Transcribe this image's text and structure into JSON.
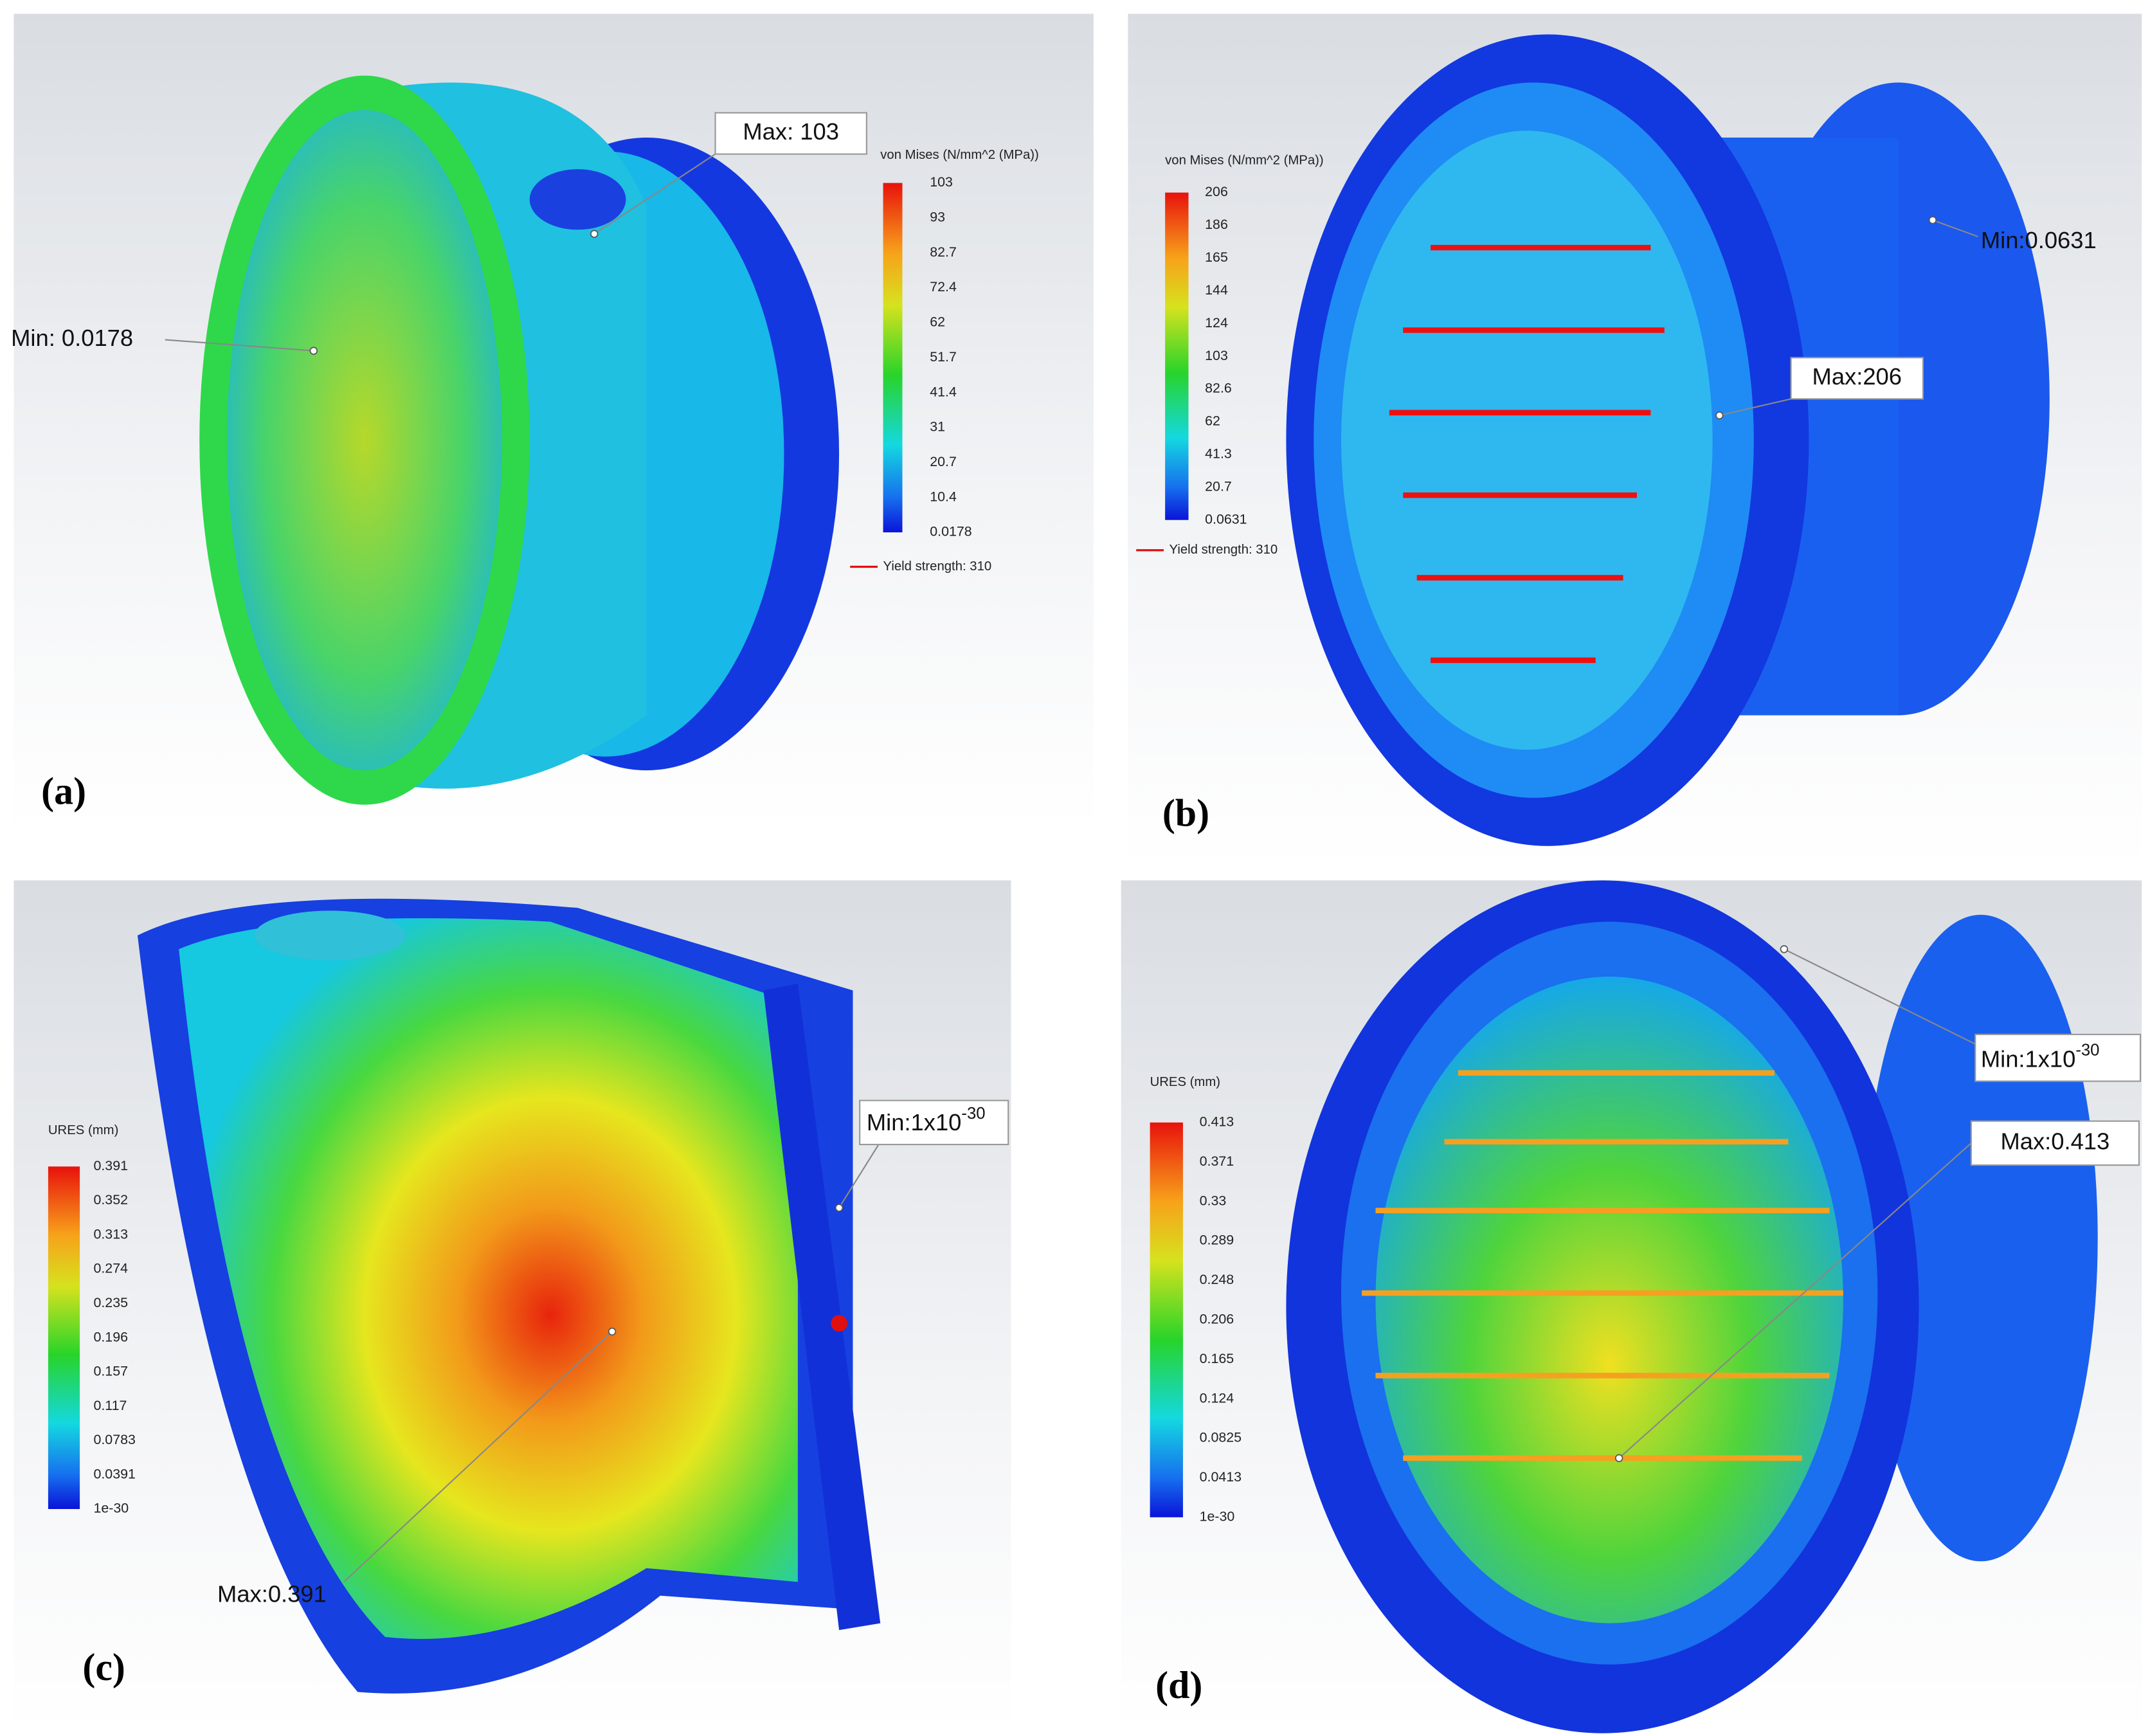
{
  "panels": [
    {
      "label": "(a)",
      "legend": {
        "title": "von Mises (N/mm^2 (MPa))",
        "ticks": [
          "103",
          "93",
          "82.7",
          "72.4",
          "62",
          "51.7",
          "41.4",
          "31",
          "20.7",
          "10.4",
          "0.0178"
        ],
        "yield": "Yield strength: 310"
      },
      "max": "Max: 103",
      "min": "Min: 0.0178"
    },
    {
      "label": "(b)",
      "legend": {
        "title": "von Mises (N/mm^2 (MPa))",
        "ticks": [
          "206",
          "186",
          "165",
          "144",
          "124",
          "103",
          "82.6",
          "62",
          "41.3",
          "20.7",
          "0.0631"
        ],
        "yield": "Yield strength: 310"
      },
      "max": "Max:206",
      "min": "Min:0.0631"
    },
    {
      "label": "(c)",
      "legend": {
        "title": "URES (mm)",
        "ticks": [
          "0.391",
          "0.352",
          "0.313",
          "0.274",
          "0.235",
          "0.196",
          "0.157",
          "0.117",
          "0.0783",
          "0.0391",
          "1e-30"
        ]
      },
      "max": "Max:0.391",
      "min": {
        "text": "Min:1x10",
        "sup": "-30"
      }
    },
    {
      "label": "(d)",
      "legend": {
        "title": "URES (mm)",
        "ticks": [
          "0.413",
          "0.371",
          "0.33",
          "0.289",
          "0.248",
          "0.206",
          "0.165",
          "0.124",
          "0.0825",
          "0.0413",
          "1e-30"
        ]
      },
      "max": "Max:0.413",
      "min": {
        "text": "Min:1x10",
        "sup": "-30"
      }
    }
  ]
}
